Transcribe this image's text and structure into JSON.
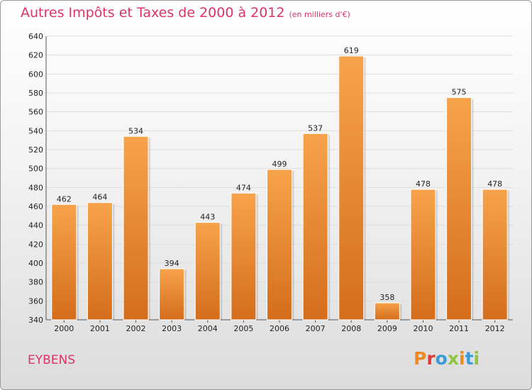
{
  "header": {
    "title": "Autres Impôts et Taxes de 2000 à 2012",
    "subtitle": "(en milliers d'€)"
  },
  "footer": {
    "commune": "EYBENS",
    "logo": "Proxiti"
  },
  "colors": {
    "title": "#dd3366",
    "bar_light": "#f7a34b",
    "bar_dark": "#d46d1c",
    "grid": "#dddddd",
    "logo_letters": [
      "#f08a1e",
      "#e03a3a",
      "#3a9bd8",
      "#8cc63f",
      "#f08a1e",
      "#3a9bd8",
      "#8cc63f"
    ]
  },
  "chart_data": {
    "type": "bar",
    "title": "Autres Impôts et Taxes de 2000 à 2012",
    "subtitle": "(en milliers d'€)",
    "xlabel": "",
    "ylabel": "",
    "categories": [
      "2000",
      "2001",
      "2002",
      "2003",
      "2004",
      "2005",
      "2006",
      "2007",
      "2008",
      "2009",
      "2010",
      "2011",
      "2012"
    ],
    "values": [
      462,
      464,
      534,
      394,
      443,
      474,
      499,
      537,
      619,
      358,
      478,
      575,
      478
    ],
    "ylim": [
      340,
      640
    ],
    "yticks": [
      340,
      360,
      380,
      400,
      420,
      440,
      460,
      480,
      500,
      520,
      540,
      560,
      580,
      600,
      620,
      640
    ],
    "grid": true,
    "legend": "none"
  }
}
